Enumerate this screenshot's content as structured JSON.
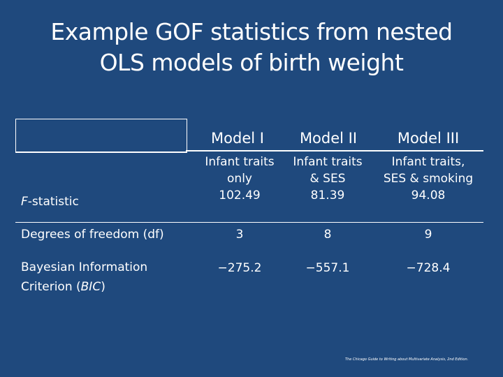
{
  "title": {
    "line1": "Example GOF statistics from nested",
    "line2": "OLS models of birth weight"
  },
  "table": {
    "columns": [
      "Model I",
      "Model II",
      "Model III"
    ],
    "descriptions": [
      {
        "line1": "Infant traits",
        "line2": "only"
      },
      {
        "line1": "Infant traits",
        "line2": "& SES"
      },
      {
        "line1": "Infant traits,",
        "line2": "SES & smoking"
      }
    ],
    "rows": [
      {
        "label_italic": "F",
        "label_rest": "-statistic",
        "values": [
          "102.49",
          "81.39",
          "94.08"
        ]
      },
      {
        "label": "Degrees of freedom (df)",
        "values": [
          "3",
          "8",
          "9"
        ]
      },
      {
        "label_line1": "Bayesian Information",
        "label_line2_pre": "Criterion (",
        "label_line2_italic": "BIC",
        "label_line2_post": ")",
        "values": [
          "−275.2",
          "−557.1",
          "−728.4"
        ]
      }
    ]
  },
  "footer": {
    "note": "The Chicago Guide to Writing about Multivariate Analysis, 2nd Edition."
  }
}
